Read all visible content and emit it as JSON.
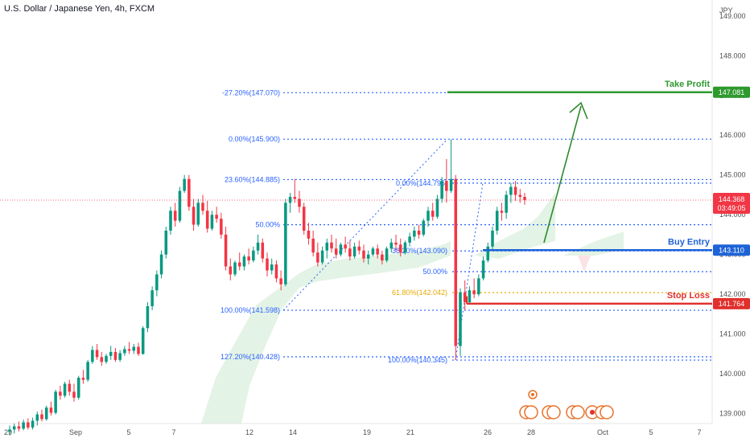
{
  "header": {
    "symbol_title": "U.S. Dollar / Japanese Yen, 4h, FXCM",
    "currency": "JPY"
  },
  "colors": {
    "bull": "#089981",
    "bear": "#f23645",
    "fib_line": "#2962ff",
    "fib_label": "#2962ff",
    "fib_gold": "#e8a800",
    "take_profit": "#2e9a2e",
    "buy_entry": "#1e63d6",
    "stop_loss": "#e0302c",
    "cloud": "#d9efdc",
    "arrow": "#2e8a2e",
    "last_price": "#f23645"
  },
  "chart_data": {
    "type": "candlestick",
    "ylim": [
      138.75,
      149.4
    ],
    "y_ticks": [
      139,
      140,
      141,
      142,
      143,
      144,
      145,
      146,
      147,
      148,
      149
    ],
    "y_tick_labels": [
      "139.000",
      "140.000",
      "141.000",
      "142.000",
      "143.000",
      "144.000",
      "145.000",
      "146.000",
      "147.000",
      "148.000",
      "149.000"
    ],
    "x_tick_labels": [
      "29",
      "Sep",
      "5",
      "7",
      "12",
      "14",
      "19",
      "21",
      "26",
      "28",
      "Oct",
      "5",
      "7"
    ],
    "fib_levels_left": [
      {
        "label": "-27.20%(147.070)",
        "price": 147.07
      },
      {
        "label": "0.00%(145.900)",
        "price": 145.9
      },
      {
        "label": "23.60%(144.885)",
        "price": 144.885
      },
      {
        "label": "50.00%",
        "price": 143.749
      },
      {
        "label": "100.00%(141.598)",
        "price": 141.598
      },
      {
        "label": "127.20%(140.428)",
        "price": 140.428
      }
    ],
    "fib_levels_right": [
      {
        "label": "0.00%(144.795)",
        "price": 144.795,
        "gold": false
      },
      {
        "label": "38.20%(143.090)",
        "price": 143.09,
        "gold": false
      },
      {
        "label": "50.00%",
        "price": 142.57,
        "gold": false
      },
      {
        "label": "61.80%(142.042)",
        "price": 142.042,
        "gold": true
      },
      {
        "label": "100.00%(140.345)",
        "price": 140.345,
        "gold": false
      }
    ],
    "annotations": [
      {
        "label": "Take Profit",
        "price": 147.081,
        "tag": "147.081",
        "role": "take_profit"
      },
      {
        "label": "Buy Entry",
        "price": 143.11,
        "tag": "143.110",
        "role": "buy_entry"
      },
      {
        "label": "Stop Loss",
        "price": 141.764,
        "tag": "141.764",
        "role": "stop_loss"
      }
    ],
    "last_price": {
      "value": 144.368,
      "label": "144.368",
      "countdown": "03:49:05"
    },
    "candles": [
      [
        138.55,
        138.7,
        138.45,
        138.6
      ],
      [
        138.6,
        138.75,
        138.5,
        138.68
      ],
      [
        138.68,
        138.8,
        138.55,
        138.62
      ],
      [
        138.62,
        138.85,
        138.58,
        138.78
      ],
      [
        138.78,
        138.88,
        138.6,
        138.65
      ],
      [
        138.65,
        138.9,
        138.6,
        138.82
      ],
      [
        138.82,
        139.05,
        138.7,
        138.98
      ],
      [
        138.98,
        139.1,
        138.8,
        138.86
      ],
      [
        138.86,
        139.2,
        138.82,
        139.15
      ],
      [
        139.15,
        139.3,
        138.95,
        139.02
      ],
      [
        139.02,
        139.6,
        138.98,
        139.55
      ],
      [
        139.55,
        139.7,
        139.35,
        139.45
      ],
      [
        139.45,
        139.8,
        139.4,
        139.75
      ],
      [
        139.75,
        139.85,
        139.45,
        139.55
      ],
      [
        139.55,
        139.75,
        139.3,
        139.4
      ],
      [
        139.4,
        139.95,
        139.35,
        139.9
      ],
      [
        139.9,
        140.1,
        139.75,
        139.85
      ],
      [
        139.85,
        140.35,
        139.8,
        140.3
      ],
      [
        140.3,
        140.7,
        140.25,
        140.6
      ],
      [
        140.6,
        140.75,
        140.35,
        140.42
      ],
      [
        140.42,
        140.55,
        140.2,
        140.3
      ],
      [
        140.3,
        140.5,
        140.25,
        140.45
      ],
      [
        140.45,
        140.7,
        140.35,
        140.55
      ],
      [
        140.55,
        140.65,
        140.3,
        140.35
      ],
      [
        140.35,
        140.6,
        140.3,
        140.52
      ],
      [
        140.52,
        140.7,
        140.45,
        140.62
      ],
      [
        140.62,
        140.8,
        140.5,
        140.58
      ],
      [
        140.58,
        140.75,
        140.5,
        140.68
      ],
      [
        140.68,
        140.78,
        140.45,
        140.5
      ],
      [
        140.5,
        141.2,
        140.48,
        141.15
      ],
      [
        141.15,
        141.8,
        141.05,
        141.7
      ],
      [
        141.7,
        142.2,
        141.6,
        142.1
      ],
      [
        142.1,
        142.6,
        141.95,
        142.5
      ],
      [
        142.5,
        143.1,
        142.4,
        143.0
      ],
      [
        143.0,
        143.7,
        142.9,
        143.6
      ],
      [
        143.6,
        144.2,
        143.5,
        144.1
      ],
      [
        144.1,
        144.3,
        143.7,
        143.85
      ],
      [
        143.85,
        144.7,
        143.8,
        144.6
      ],
      [
        144.6,
        145.0,
        144.55,
        144.9
      ],
      [
        144.9,
        145.0,
        144.1,
        144.2
      ],
      [
        144.2,
        144.4,
        143.6,
        143.75
      ],
      [
        143.75,
        144.4,
        143.7,
        144.3
      ],
      [
        144.3,
        144.5,
        144.0,
        144.1
      ],
      [
        144.1,
        144.35,
        143.55,
        143.65
      ],
      [
        143.65,
        144.1,
        143.6,
        144.0
      ],
      [
        144.0,
        144.2,
        143.8,
        143.9
      ],
      [
        143.9,
        144.05,
        143.4,
        143.5
      ],
      [
        143.5,
        143.7,
        142.6,
        142.7
      ],
      [
        142.7,
        142.9,
        142.35,
        142.5
      ],
      [
        142.5,
        142.85,
        142.45,
        142.8
      ],
      [
        142.8,
        143.05,
        142.6,
        142.7
      ],
      [
        142.7,
        143.0,
        142.6,
        142.95
      ],
      [
        142.95,
        143.15,
        142.75,
        142.85
      ],
      [
        142.85,
        143.2,
        142.8,
        143.1
      ],
      [
        143.1,
        143.5,
        143.0,
        143.3
      ],
      [
        143.3,
        143.4,
        142.8,
        142.9
      ],
      [
        142.9,
        143.05,
        142.45,
        142.6
      ],
      [
        142.6,
        142.9,
        142.5,
        142.75
      ],
      [
        142.75,
        142.85,
        142.3,
        142.4
      ],
      [
        142.4,
        142.6,
        142.1,
        142.25
      ],
      [
        142.25,
        144.4,
        142.2,
        144.3
      ],
      [
        144.3,
        144.55,
        144.05,
        144.45
      ],
      [
        144.45,
        144.9,
        144.3,
        144.4
      ],
      [
        144.4,
        144.6,
        144.05,
        144.2
      ],
      [
        144.2,
        144.3,
        143.5,
        143.6
      ],
      [
        143.6,
        143.8,
        143.25,
        143.4
      ],
      [
        143.4,
        143.6,
        142.95,
        143.05
      ],
      [
        143.05,
        143.3,
        142.7,
        142.8
      ],
      [
        142.8,
        143.2,
        142.75,
        143.1
      ],
      [
        143.1,
        143.4,
        142.9,
        143.3
      ],
      [
        143.3,
        143.5,
        143.05,
        143.15
      ],
      [
        143.15,
        143.4,
        142.9,
        143.0
      ],
      [
        143.0,
        143.3,
        142.95,
        143.25
      ],
      [
        143.25,
        143.45,
        143.05,
        143.15
      ],
      [
        143.15,
        143.35,
        142.85,
        142.95
      ],
      [
        142.95,
        143.3,
        142.9,
        143.2
      ],
      [
        143.2,
        143.35,
        143.0,
        143.1
      ],
      [
        143.1,
        143.25,
        142.8,
        142.9
      ],
      [
        142.9,
        143.1,
        142.75,
        143.0
      ],
      [
        143.0,
        143.2,
        142.95,
        143.15
      ],
      [
        143.15,
        143.25,
        142.9,
        143.0
      ],
      [
        143.0,
        143.1,
        142.75,
        142.85
      ],
      [
        142.85,
        143.2,
        142.8,
        143.15
      ],
      [
        143.15,
        143.4,
        143.05,
        143.3
      ],
      [
        143.3,
        143.5,
        143.1,
        143.25
      ],
      [
        143.25,
        143.4,
        142.95,
        143.05
      ],
      [
        143.05,
        143.35,
        143.0,
        143.3
      ],
      [
        143.3,
        143.55,
        143.2,
        143.45
      ],
      [
        143.45,
        143.7,
        143.35,
        143.6
      ],
      [
        143.6,
        143.75,
        143.4,
        143.5
      ],
      [
        143.5,
        143.9,
        143.45,
        143.85
      ],
      [
        143.85,
        144.2,
        143.7,
        144.1
      ],
      [
        144.1,
        144.3,
        143.85,
        143.95
      ],
      [
        143.95,
        144.5,
        143.9,
        144.4
      ],
      [
        144.4,
        144.95,
        144.3,
        144.85
      ],
      [
        144.85,
        145.4,
        144.3,
        144.6
      ],
      [
        144.6,
        145.9,
        144.55,
        144.9
      ],
      [
        144.9,
        145.0,
        140.35,
        140.7
      ],
      [
        140.7,
        142.15,
        140.45,
        142.05
      ],
      [
        142.05,
        142.35,
        141.6,
        141.8
      ],
      [
        141.8,
        142.2,
        141.75,
        142.1
      ],
      [
        142.1,
        142.4,
        141.9,
        142.0
      ],
      [
        142.0,
        142.5,
        141.95,
        142.4
      ],
      [
        142.4,
        142.95,
        142.35,
        142.85
      ],
      [
        142.85,
        143.3,
        142.8,
        143.2
      ],
      [
        143.2,
        143.7,
        143.1,
        143.6
      ],
      [
        143.6,
        144.2,
        143.5,
        144.1
      ],
      [
        144.1,
        144.3,
        143.85,
        144.05
      ],
      [
        144.05,
        144.6,
        143.9,
        144.5
      ],
      [
        144.5,
        144.8,
        144.3,
        144.7
      ],
      [
        144.7,
        144.85,
        144.35,
        144.5
      ],
      [
        144.5,
        144.65,
        144.3,
        144.45
      ],
      [
        144.45,
        144.55,
        144.25,
        144.37
      ]
    ]
  }
}
